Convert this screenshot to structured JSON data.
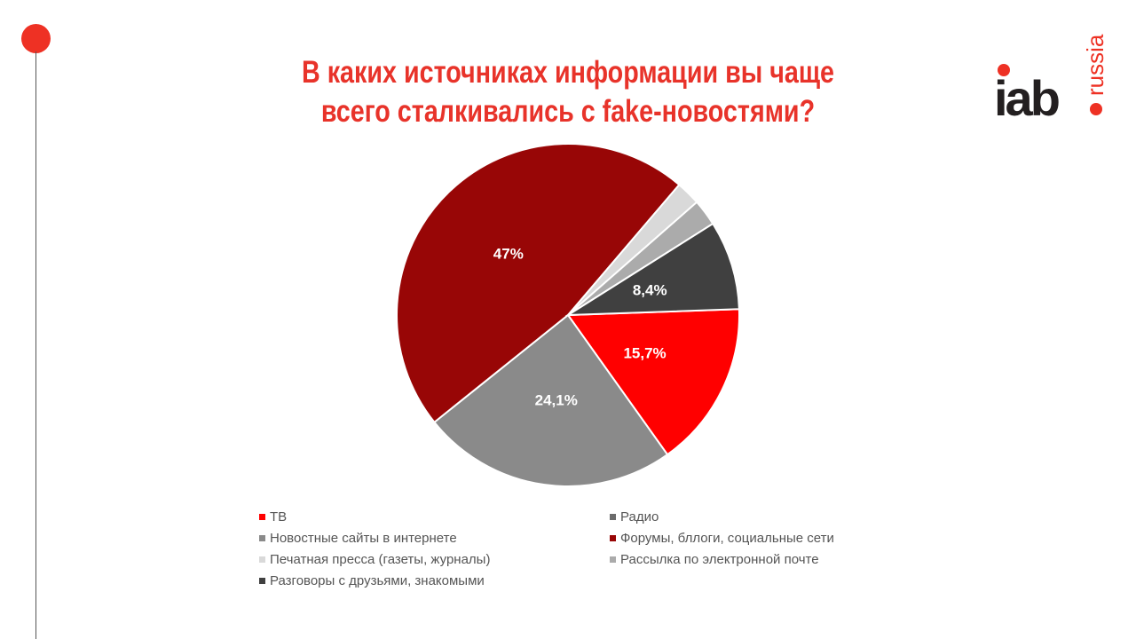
{
  "title_lines": [
    "В каких источниках информации вы чаще",
    "всего сталкивались с fake-новостями?"
  ],
  "logo": {
    "text": "iab",
    "suffix": "russia",
    "colors": {
      "dark": "#231f20",
      "accent": "#ee3124"
    }
  },
  "chart_data": {
    "type": "pie",
    "title": "В каких источниках информации вы чаще всего сталкивались с fake-новостями?",
    "legend_position": "bottom",
    "slice_order": [
      "ТВ",
      "Новостные сайты в интернете",
      "Форумы, бллоги, социальные сети",
      "Печатная пресса (газеты, журналы)",
      "Рассылка по электронной почте",
      "Разговоры с друзьями, знакомыми"
    ],
    "slices": [
      {
        "label": "ТВ",
        "value": 15.7,
        "data_label": "15,7%",
        "color": "#ff0000"
      },
      {
        "label": "Радио",
        "value": 0,
        "data_label": "",
        "color": "#6b6b6b"
      },
      {
        "label": "Новостные сайты в интернете",
        "value": 24.1,
        "data_label": "24,1%",
        "color": "#8a8a8a"
      },
      {
        "label": "Форумы, бллоги, социальные сети",
        "value": 47,
        "data_label": "47%",
        "color": "#980606"
      },
      {
        "label": "Печатная пресса (газеты, журналы)",
        "value": 2.3,
        "data_label": "",
        "color": "#d9d9d9"
      },
      {
        "label": "Рассылка по электронной почте",
        "value": 2.5,
        "data_label": "",
        "color": "#ababab"
      },
      {
        "label": "Разговоры с друзьями, знакомыми",
        "value": 8.4,
        "data_label": "8,4%",
        "color": "#404040"
      }
    ]
  }
}
